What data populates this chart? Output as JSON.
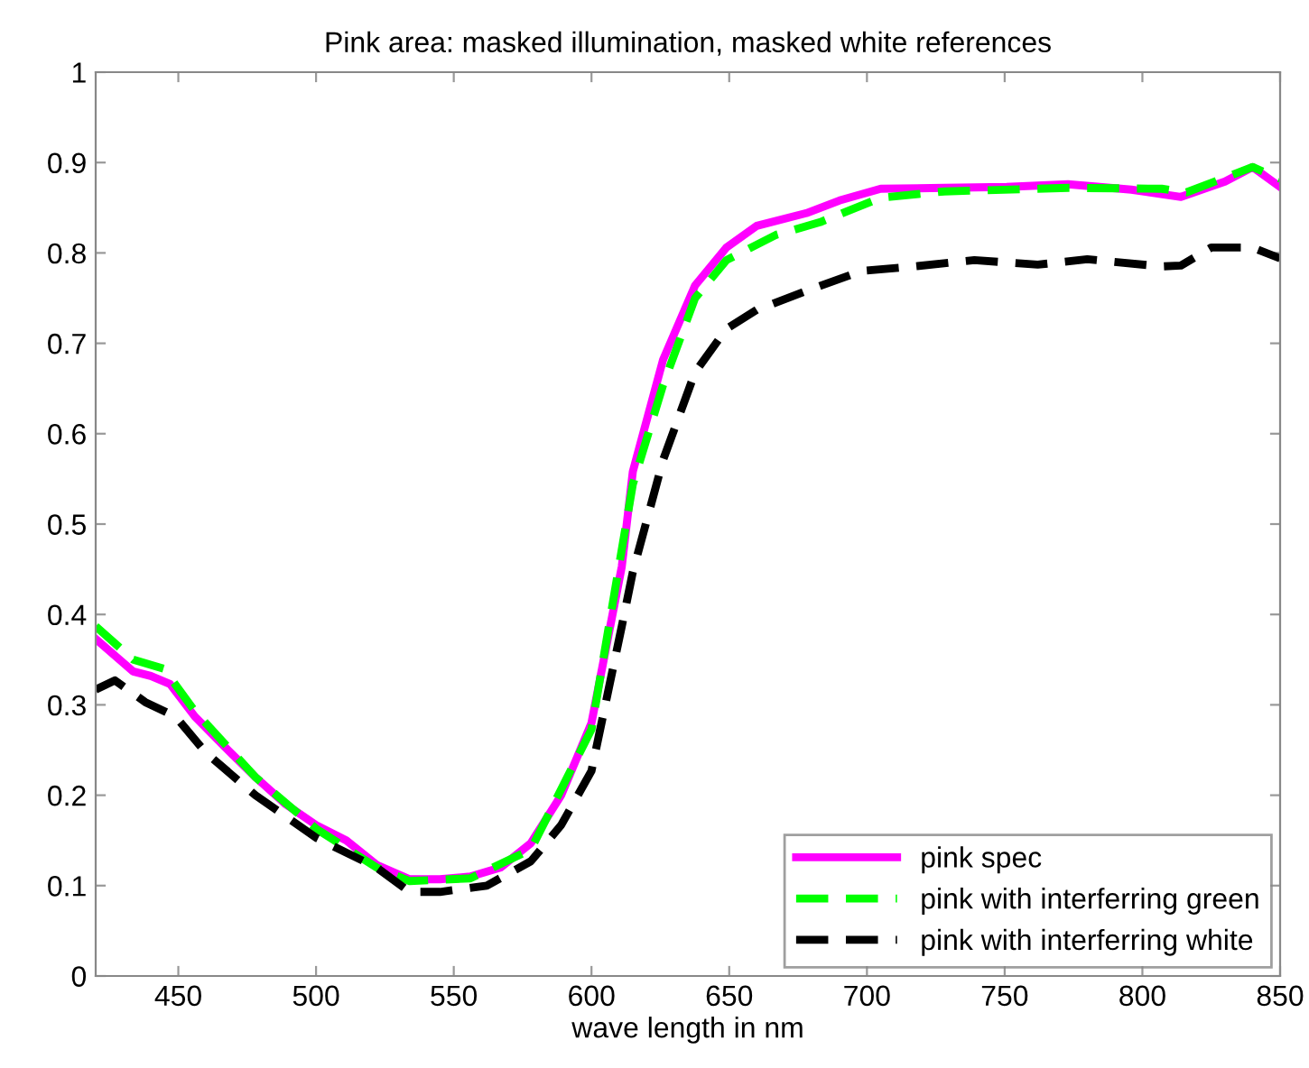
{
  "chart_data": {
    "type": "line",
    "title": "Pink area: masked illumination, masked white references",
    "xlabel": "wave length in nm",
    "xlim": [
      420,
      850
    ],
    "xticks": [
      450,
      500,
      550,
      600,
      650,
      700,
      750,
      800,
      850
    ],
    "ylim": [
      0,
      1
    ],
    "yticks": [
      0,
      0.1,
      0.2,
      0.3,
      0.4,
      0.5,
      0.6,
      0.7,
      0.8,
      0.9,
      1
    ],
    "grid": false,
    "legend": "bottom right",
    "marker": "none",
    "series": [
      {
        "name": "pink spec",
        "color": "#ff00ff",
        "line_style": "solid",
        "x": [
          420,
          433.6,
          440,
          447,
          456,
          467,
          478,
          489,
          500,
          511,
          522,
          534,
          545,
          556,
          567,
          578,
          589,
          600,
          611,
          615,
          626,
          637.6,
          649,
          660,
          678,
          690,
          705,
          728,
          750.7,
          773,
          796,
          814,
          830,
          840,
          850
        ],
        "values": [
          0.373,
          0.337,
          0.332,
          0.323,
          0.287,
          0.253,
          0.22,
          0.19,
          0.167,
          0.15,
          0.123,
          0.107,
          0.107,
          0.11,
          0.12,
          0.147,
          0.2,
          0.28,
          0.453,
          0.558,
          0.682,
          0.764,
          0.806,
          0.83,
          0.844,
          0.858,
          0.871,
          0.872,
          0.873,
          0.876,
          0.87,
          0.862,
          0.879,
          0.895,
          0.873
        ]
      },
      {
        "name": "pink with interferring green",
        "color": "#00ff00",
        "line_style": "dashed",
        "x": [
          420,
          433.6,
          444.7,
          456,
          478,
          500,
          522,
          534,
          556,
          578,
          600,
          615,
          626,
          637.6,
          649,
          667,
          683,
          705,
          728,
          773,
          807,
          816,
          840,
          850
        ],
        "values": [
          0.387,
          0.35,
          0.34,
          0.293,
          0.22,
          0.163,
          0.12,
          0.105,
          0.108,
          0.14,
          0.273,
          0.544,
          0.654,
          0.75,
          0.792,
          0.82,
          0.834,
          0.861,
          0.868,
          0.872,
          0.871,
          0.867,
          0.895,
          0.882
        ]
      },
      {
        "name": "pink with interferring white",
        "color": "#000000",
        "line_style": "dashed",
        "x": [
          420,
          427,
          438,
          449,
          460,
          478,
          500,
          522,
          534,
          545,
          562,
          578,
          589,
          600,
          611,
          615,
          626,
          637.6,
          649,
          660,
          678,
          698,
          717,
          739,
          762,
          780,
          807,
          814,
          825,
          840,
          850
        ],
        "values": [
          0.317,
          0.327,
          0.303,
          0.287,
          0.247,
          0.2,
          0.153,
          0.12,
          0.093,
          0.093,
          0.1,
          0.127,
          0.167,
          0.227,
          0.387,
          0.447,
          0.571,
          0.668,
          0.716,
          0.737,
          0.758,
          0.78,
          0.785,
          0.792,
          0.787,
          0.793,
          0.785,
          0.786,
          0.806,
          0.806,
          0.794
        ]
      }
    ]
  }
}
